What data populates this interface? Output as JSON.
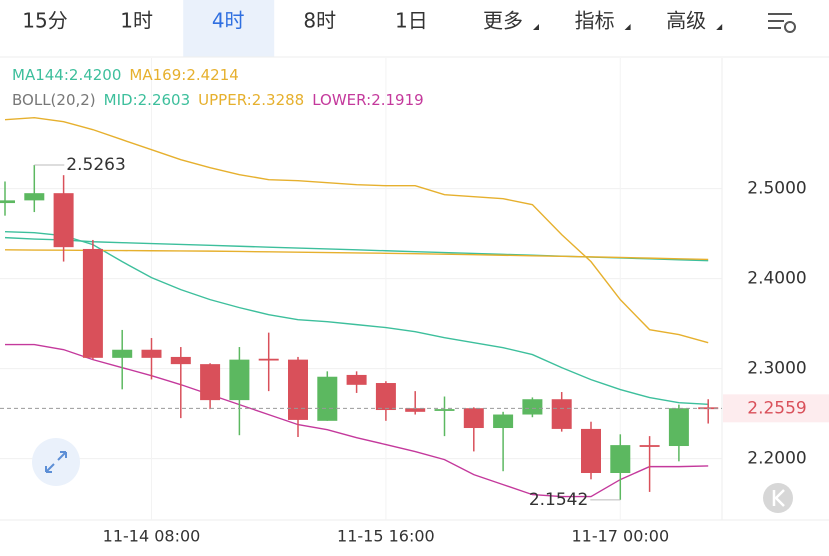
{
  "tabs": {
    "items": [
      "15分",
      "1时",
      "4时",
      "8时",
      "1日",
      "更多",
      "指标",
      "高级"
    ],
    "selected": 2
  },
  "chart_data": {
    "type": "candlestick",
    "categories": [
      null,
      null,
      null,
      null,
      null,
      "11-14 08:00",
      null,
      null,
      null,
      null,
      null,
      null,
      null,
      "11-15 16:00",
      null,
      null,
      null,
      null,
      null,
      null,
      null,
      "11-17 00:00",
      null,
      null,
      null
    ],
    "open": [
      2.484,
      2.487,
      2.495,
      2.433,
      2.312,
      2.321,
      2.313,
      2.305,
      2.265,
      2.311,
      2.31,
      2.242,
      2.293,
      2.284,
      2.256,
      2.253,
      2.256,
      2.234,
      2.249,
      2.266,
      2.233,
      2.184,
      2.215,
      2.214,
      2.257
    ],
    "high": [
      2.508,
      2.5263,
      2.515,
      2.443,
      2.343,
      2.334,
      2.324,
      2.306,
      2.324,
      2.34,
      2.313,
      2.297,
      2.297,
      2.286,
      2.275,
      2.269,
      2.257,
      2.252,
      2.268,
      2.274,
      2.241,
      2.227,
      2.225,
      2.26,
      2.266
    ],
    "low": [
      2.47,
      2.474,
      2.419,
      2.31,
      2.277,
      2.288,
      2.245,
      2.255,
      2.226,
      2.275,
      2.224,
      2.242,
      2.273,
      2.242,
      2.249,
      2.225,
      2.208,
      2.186,
      2.246,
      2.23,
      2.177,
      2.1542,
      2.163,
      2.197,
      2.239
    ],
    "close": [
      2.487,
      2.495,
      2.435,
      2.312,
      2.321,
      2.312,
      2.305,
      2.265,
      2.31,
      2.31,
      2.243,
      2.291,
      2.282,
      2.254,
      2.252,
      2.255,
      2.234,
      2.249,
      2.266,
      2.233,
      2.184,
      2.215,
      2.214,
      2.256,
      2.2559
    ],
    "up_color": "#5cb860",
    "down_color": "#d9505a",
    "ylim": [
      2.134,
      2.643
    ],
    "yticks": [
      {
        "value": 2.2,
        "label": "2.2000"
      },
      {
        "value": 2.3,
        "label": "2.3000"
      },
      {
        "value": 2.4,
        "label": "2.4000"
      },
      {
        "value": 2.5,
        "label": "2.5000"
      }
    ],
    "grid": true,
    "last_price": 2.2559,
    "legend_separator": ":",
    "ma": [
      {
        "name": "MA144",
        "color": "#3dbf9c",
        "value_label": "2.4200",
        "values": [
          2.4456,
          2.444,
          2.443,
          2.441,
          2.44,
          2.439,
          2.438,
          2.437,
          2.436,
          2.435,
          2.434,
          2.433,
          2.432,
          2.431,
          2.43,
          2.429,
          2.428,
          2.427,
          2.426,
          2.425,
          2.424,
          2.423,
          2.422,
          2.421,
          2.42
        ]
      },
      {
        "name": "MA169",
        "color": "#e6b02e",
        "value_label": "2.4214",
        "values": [
          2.432,
          2.4318,
          2.4316,
          2.4314,
          2.4312,
          2.431,
          2.4308,
          2.4306,
          2.4302,
          2.4298,
          2.4294,
          2.429,
          2.4286,
          2.4282,
          2.4278,
          2.4272,
          2.4266,
          2.426,
          2.4254,
          2.4248,
          2.4242,
          2.4236,
          2.4228,
          2.422,
          2.4214
        ]
      }
    ],
    "boll": {
      "label": "BOLL(20,2)",
      "lines": [
        {
          "name": "MID",
          "color": "#3dbf9c",
          "value_label": "2.2603",
          "values": [
            2.4522,
            2.4511,
            2.4478,
            2.4378,
            2.4189,
            2.4011,
            2.3878,
            2.3767,
            2.3678,
            2.36,
            2.3544,
            2.3522,
            2.3489,
            2.3456,
            2.3411,
            2.3344,
            2.3289,
            2.3233,
            2.3156,
            2.3011,
            2.2878,
            2.2767,
            2.2678,
            2.2622,
            2.2603
          ]
        },
        {
          "name": "UPPER",
          "color": "#e6b02e",
          "value_label": "2.3288",
          "values": [
            2.5767,
            2.5789,
            2.5744,
            2.5656,
            2.5544,
            2.5433,
            2.5322,
            2.5233,
            2.5156,
            2.51,
            2.5089,
            2.5067,
            2.5044,
            2.5033,
            2.5033,
            2.4933,
            2.4911,
            2.4889,
            2.4822,
            2.4489,
            2.4189,
            2.3767,
            2.3433,
            2.3378,
            2.3288
          ]
        },
        {
          "name": "LOWER",
          "color": "#c4399c",
          "value_label": "2.1919",
          "values": [
            2.3267,
            2.3267,
            2.3211,
            2.31,
            2.3011,
            2.2922,
            2.2822,
            2.2711,
            2.26,
            2.2489,
            2.2378,
            2.2322,
            2.2233,
            2.2156,
            2.2078,
            2.1989,
            2.1822,
            2.1711,
            2.16,
            2.1578,
            2.1578,
            2.1767,
            2.1911,
            2.1911,
            2.1919
          ]
        }
      ]
    }
  }
}
